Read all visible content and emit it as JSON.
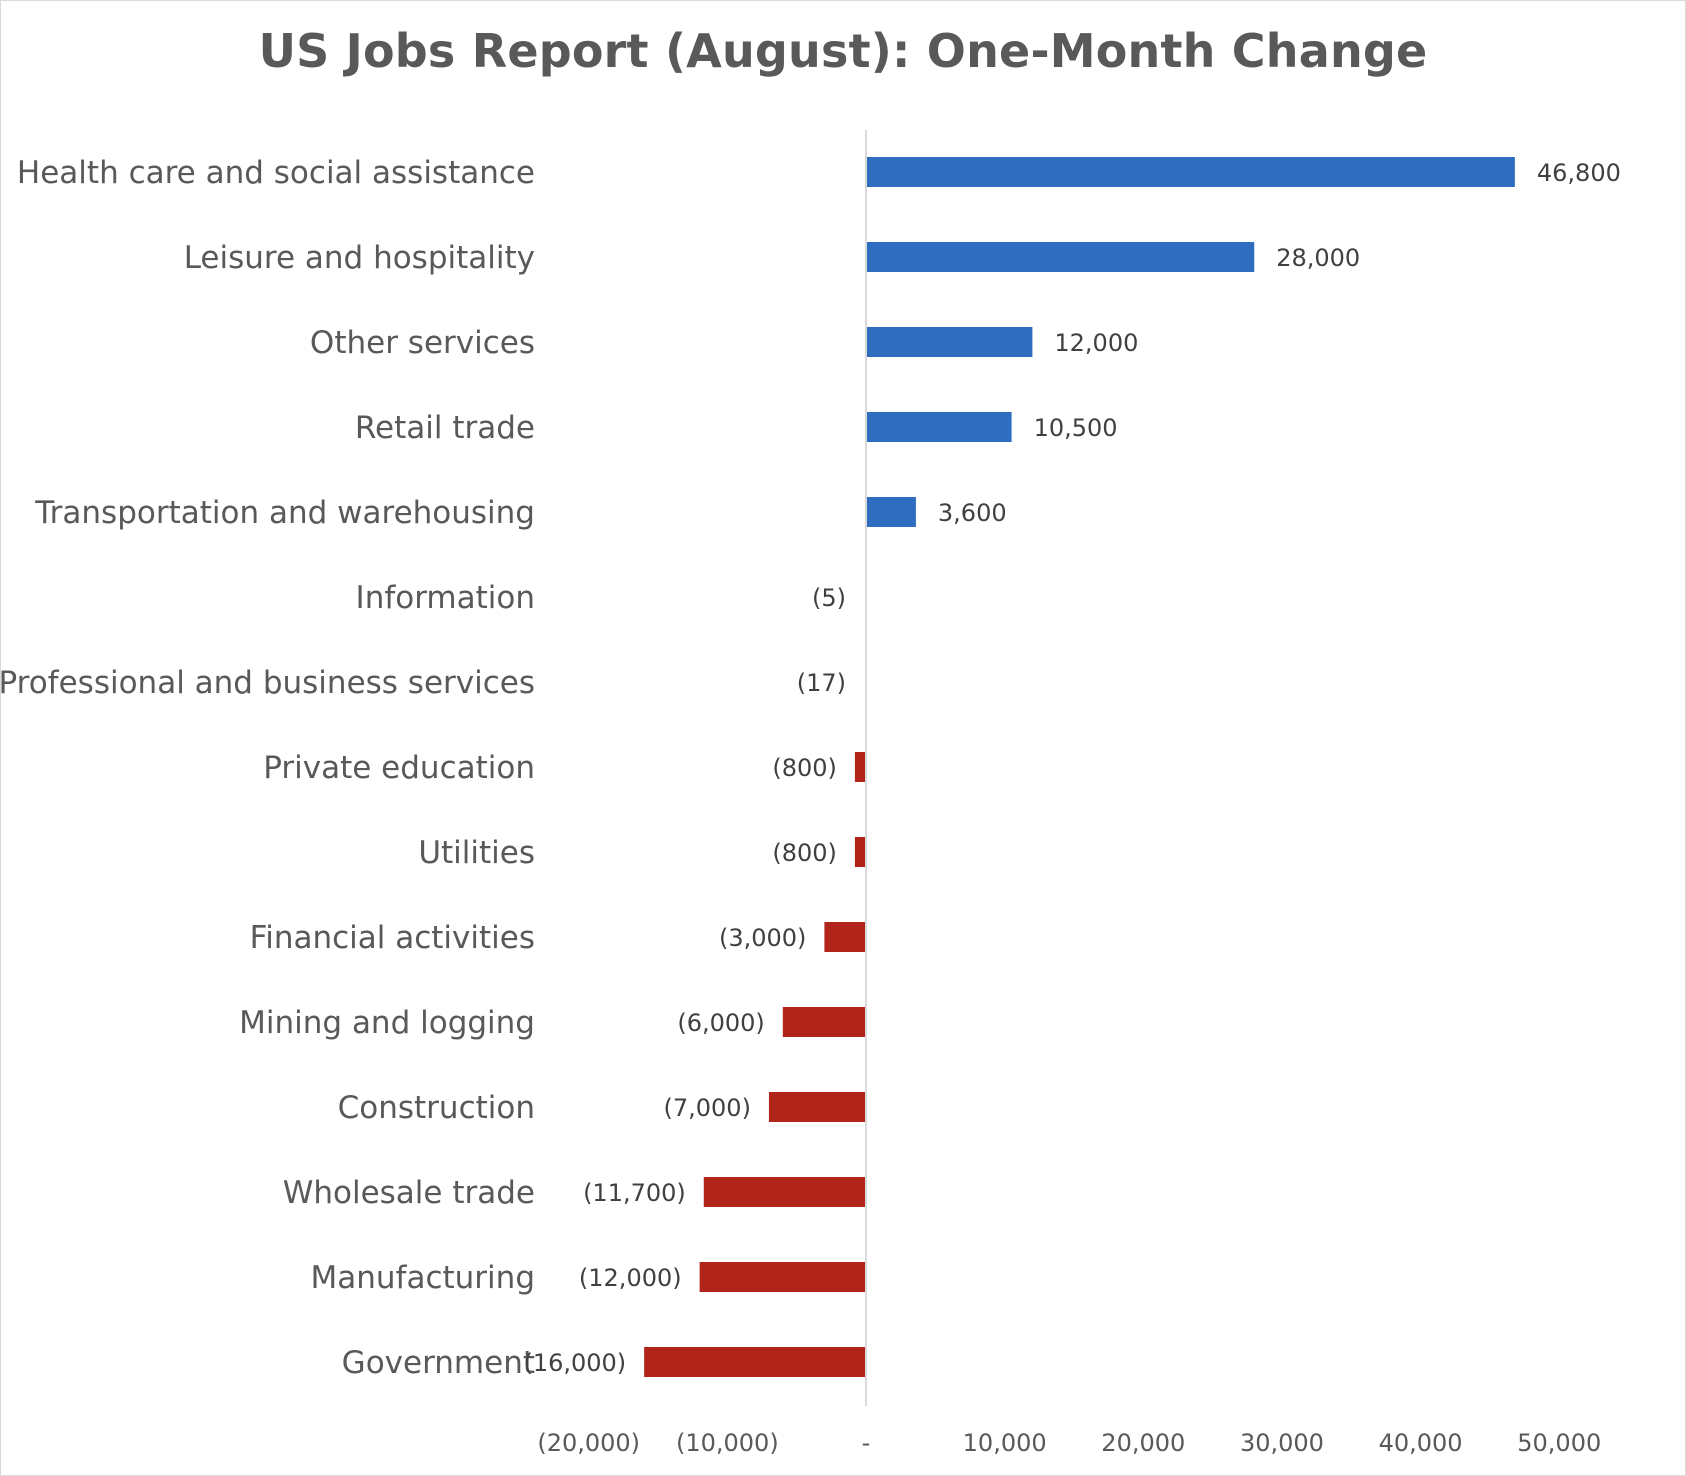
{
  "chart_data": {
    "type": "bar",
    "orientation": "horizontal",
    "title": "US Jobs Report (August): One-Month Change",
    "xlabel": "",
    "ylabel": "",
    "categories": [
      "Health care and social assistance",
      "Leisure and hospitality",
      "Other services",
      "Retail trade",
      "Transportation and warehousing",
      "Information",
      "Professional and business services",
      "Private education",
      "Utilities",
      "Financial activities",
      "Mining and logging",
      "Construction",
      "Wholesale trade",
      "Manufacturing",
      "Government"
    ],
    "values": [
      46800,
      28000,
      12000,
      10500,
      3600,
      -5,
      -17,
      -800,
      -800,
      -3000,
      -6000,
      -7000,
      -11700,
      -12000,
      -16000
    ],
    "data_labels": [
      "46,800",
      "28,000",
      "12,000",
      "10,500",
      "3,600",
      "(5)",
      "(17)",
      "(800)",
      "(800)",
      "(3,000)",
      "(6,000)",
      "(7,000)",
      "(11,700)",
      "(12,000)",
      "(16,000)"
    ],
    "xlim": [
      -20000,
      50000
    ],
    "x_ticks": [
      -20000,
      -10000,
      0,
      10000,
      20000,
      30000,
      40000,
      50000
    ],
    "x_tick_labels": [
      "(20,000)",
      "(10,000)",
      "-",
      "10,000",
      "20,000",
      "30,000",
      "40,000",
      "50,000"
    ],
    "grid": false,
    "legend": "none",
    "colors": {
      "positive": "#2e6dbf",
      "negative": "#b0241a",
      "axis": "#d9d9d9"
    }
  }
}
